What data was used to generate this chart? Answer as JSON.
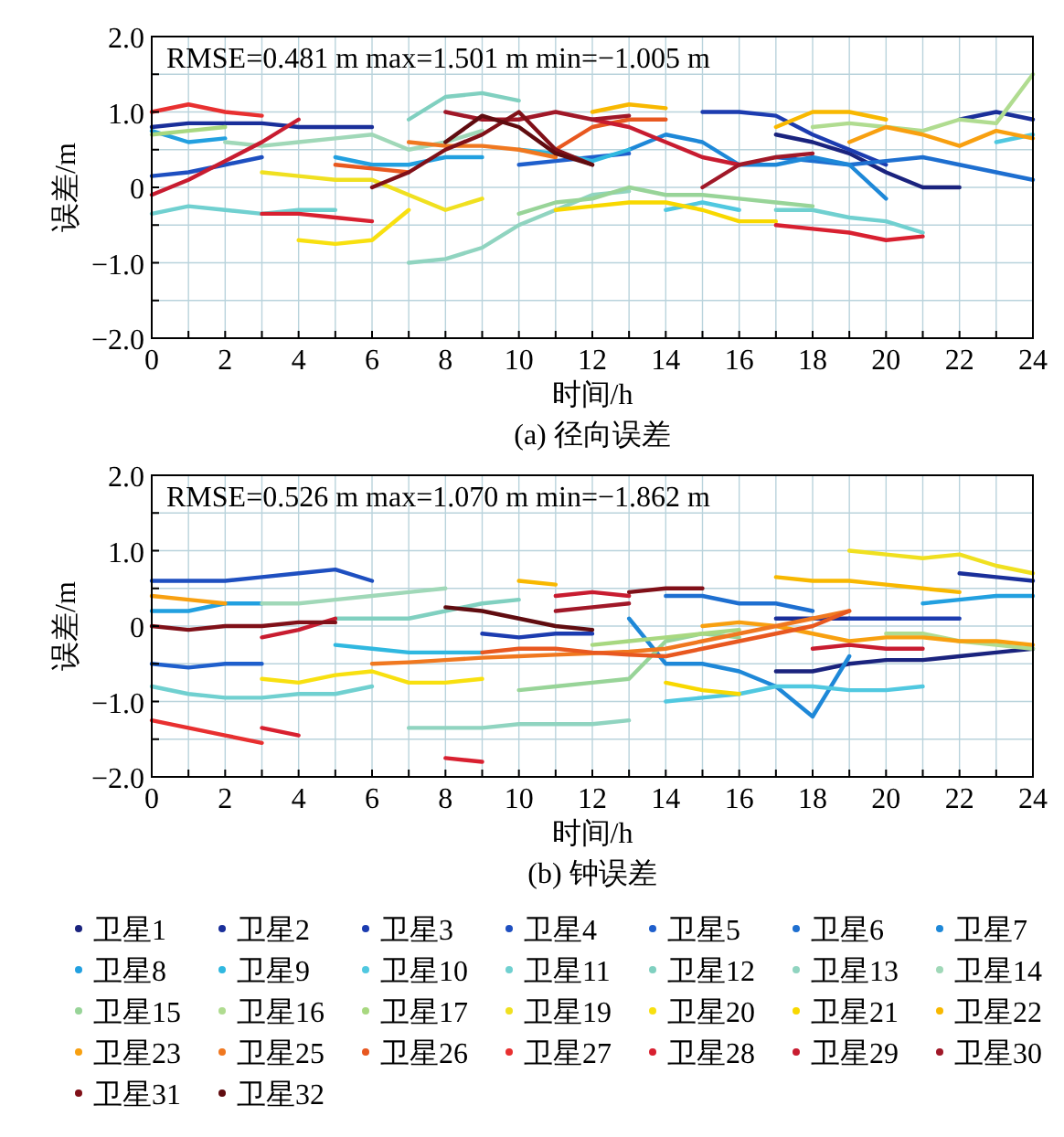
{
  "chart_data": [
    {
      "type": "line",
      "title": "(a) 径向误差",
      "xlabel": "时间/h",
      "ylabel": "误差/m",
      "annotations": [
        "RMSE=0.481 m max=1.501 m min=−1.005 m"
      ],
      "xlim": [
        0,
        24
      ],
      "ylim": [
        -2,
        2
      ],
      "xticks": [
        0,
        {
          "value": 1,
          "label": null
        },
        2,
        {
          "value": 3,
          "label": null
        },
        4,
        {
          "value": 5,
          "label": null
        },
        6,
        {
          "value": 7,
          "label": null
        },
        8,
        {
          "value": 9,
          "label": null
        },
        10,
        {
          "value": 11,
          "label": null
        },
        12,
        {
          "value": 13,
          "label": null
        },
        14,
        {
          "value": 15,
          "label": null
        },
        16,
        {
          "value": 17,
          "label": null
        },
        18,
        {
          "value": 19,
          "label": null
        },
        20,
        {
          "value": 21,
          "label": null
        },
        22,
        {
          "value": 23,
          "label": null
        },
        24
      ],
      "yticks": [
        {
          "value": -2,
          "label": "−2.0"
        },
        {
          "value": -1.5,
          "label": null
        },
        {
          "value": -1,
          "label": "−1.0"
        },
        {
          "value": -0.5,
          "label": null
        },
        0,
        {
          "value": 0.5,
          "label": null
        },
        {
          "value": 1,
          "label": "1.0"
        },
        {
          "value": 1.5,
          "label": null
        },
        {
          "value": 2,
          "label": "2.0"
        }
      ],
      "grid": true,
      "legend": false,
      "series": [
        {
          "color": "#1a237e",
          "x": [
            17,
            18,
            19,
            20,
            21,
            22
          ],
          "values": [
            0.7,
            0.6,
            0.45,
            0.2,
            0.0,
            0.0
          ]
        },
        {
          "color": "#1a2f9a",
          "x": [
            0,
            1,
            2,
            3,
            4,
            5,
            6,
            14,
            22,
            23,
            24
          ],
          "values": [
            0.8,
            0.85,
            0.85,
            0.85,
            0.8,
            0.8,
            0.8,
            null,
            0.9,
            1.0,
            0.9
          ]
        },
        {
          "color": "#1c3cb0",
          "x": [
            15,
            16,
            17,
            18,
            19,
            20
          ],
          "values": [
            1.0,
            1.0,
            0.95,
            0.7,
            0.5,
            0.3
          ]
        },
        {
          "color": "#1e4fc0",
          "x": [
            0,
            1,
            2,
            3
          ],
          "values": [
            0.15,
            0.2,
            0.3,
            0.4
          ]
        },
        {
          "color": "#1f5fcc",
          "x": [
            10,
            11,
            12,
            13
          ],
          "values": [
            0.3,
            0.35,
            0.4,
            0.45
          ]
        },
        {
          "color": "#1e6fd0",
          "x": [
            17,
            18,
            19,
            20,
            21,
            22,
            23,
            24
          ],
          "values": [
            0.4,
            0.35,
            0.3,
            0.35,
            0.4,
            0.3,
            0.2,
            0.1
          ]
        },
        {
          "color": "#1e88d8",
          "x": [
            13,
            14,
            15,
            16,
            17,
            18,
            19,
            20
          ],
          "values": [
            0.5,
            0.7,
            0.6,
            0.3,
            0.3,
            0.4,
            0.3,
            -0.15
          ]
        },
        {
          "color": "#22a0e0",
          "x": [
            0,
            1,
            2,
            3.5,
            5,
            6,
            7,
            8,
            9
          ],
          "values": [
            0.75,
            0.6,
            0.65,
            null,
            0.4,
            0.3,
            0.3,
            0.4,
            0.4
          ]
        },
        {
          "color": "#30b8e0",
          "x": [
            10,
            11,
            12,
            13
          ],
          "values": [
            0.5,
            0.45,
            0.35,
            0.5
          ]
        },
        {
          "color": "#50c8e0",
          "x": [
            14,
            15,
            16,
            19.5,
            23,
            24
          ],
          "values": [
            -0.3,
            -0.2,
            -0.3,
            null,
            0.6,
            0.7
          ]
        },
        {
          "color": "#70d0d0",
          "x": [
            0,
            1,
            2,
            3,
            4,
            5,
            11,
            17,
            18,
            19,
            20,
            21
          ],
          "values": [
            -0.35,
            -0.25,
            -0.3,
            -0.35,
            -0.3,
            -0.3,
            null,
            -0.3,
            -0.3,
            -0.4,
            -0.45,
            -0.6
          ]
        },
        {
          "color": "#80d0c0",
          "x": [
            7,
            8,
            9,
            10
          ],
          "values": [
            0.9,
            1.2,
            1.25,
            1.15
          ]
        },
        {
          "color": "#90d4c0",
          "x": [
            7,
            8,
            9,
            10,
            11,
            12,
            13
          ],
          "values": [
            -1.0,
            -0.95,
            -0.8,
            -0.5,
            -0.3,
            -0.1,
            -0.05
          ]
        },
        {
          "color": "#a0d8b8",
          "x": [
            2,
            3,
            4,
            5,
            6,
            7,
            8,
            9
          ],
          "values": [
            0.6,
            0.55,
            0.6,
            0.65,
            0.7,
            0.5,
            0.6,
            0.75
          ]
        },
        {
          "color": "#98d498",
          "x": [
            10,
            11,
            12,
            13,
            14,
            15,
            16,
            17,
            18
          ],
          "values": [
            -0.35,
            -0.2,
            -0.15,
            0.0,
            -0.1,
            -0.1,
            -0.15,
            -0.2,
            -0.25
          ]
        },
        {
          "color": "#b0dc90",
          "x": [
            18,
            19,
            20,
            21,
            22,
            23,
            24
          ],
          "values": [
            0.8,
            0.85,
            0.8,
            0.75,
            0.9,
            0.85,
            1.5
          ]
        },
        {
          "color": "#a8d880",
          "x": [
            0,
            1,
            2
          ],
          "values": [
            0.7,
            0.75,
            0.8
          ]
        },
        {
          "color": "#f0e020",
          "x": [
            3,
            4,
            5,
            6,
            7,
            8,
            9
          ],
          "values": [
            0.2,
            0.15,
            0.1,
            0.1,
            -0.1,
            -0.3,
            -0.15
          ]
        },
        {
          "color": "#f8e010",
          "x": [
            4,
            5,
            6,
            7
          ],
          "values": [
            -0.7,
            -0.75,
            -0.7,
            -0.3
          ]
        },
        {
          "color": "#f8d800",
          "x": [
            11,
            12,
            13,
            14,
            15,
            16,
            17
          ],
          "values": [
            -0.3,
            -0.25,
            -0.2,
            -0.2,
            -0.3,
            -0.45,
            -0.45
          ]
        },
        {
          "color": "#f8b800",
          "x": [
            12,
            13,
            14,
            15.5,
            17,
            18,
            19,
            20
          ],
          "values": [
            1.0,
            1.1,
            1.05,
            null,
            0.8,
            1.0,
            1.0,
            0.9
          ]
        },
        {
          "color": "#f8a010",
          "x": [
            19,
            20,
            21,
            22,
            23,
            24
          ],
          "values": [
            0.6,
            0.8,
            0.7,
            0.55,
            0.75,
            0.65
          ]
        },
        {
          "color": "#f07820",
          "x": [
            7,
            8,
            9,
            10,
            11
          ],
          "values": [
            0.6,
            0.55,
            0.55,
            0.5,
            0.4
          ]
        },
        {
          "color": "#e85820",
          "x": [
            5,
            6,
            7,
            9,
            11,
            12,
            13,
            14
          ],
          "values": [
            0.3,
            0.25,
            0.2,
            null,
            0.5,
            0.8,
            0.9,
            0.9
          ]
        },
        {
          "color": "#e83030",
          "x": [
            0,
            1,
            2,
            3
          ],
          "values": [
            1.0,
            1.1,
            1.0,
            0.95
          ]
        },
        {
          "color": "#d82030",
          "x": [
            3,
            4,
            5,
            6,
            11,
            17,
            18,
            19,
            20,
            21
          ],
          "values": [
            -0.35,
            -0.35,
            -0.4,
            -0.45,
            null,
            -0.5,
            -0.55,
            -0.6,
            -0.7,
            -0.65
          ]
        },
        {
          "color": "#c81c30",
          "x": [
            0,
            1,
            2,
            3,
            4,
            8,
            12,
            13,
            14,
            15,
            16
          ],
          "values": [
            -0.1,
            0.1,
            0.35,
            0.6,
            0.9,
            null,
            0.9,
            0.8,
            0.6,
            0.4,
            0.3
          ]
        },
        {
          "color": "#a01828",
          "x": [
            8,
            9,
            10,
            11,
            12,
            13,
            14,
            15,
            16,
            17,
            18
          ],
          "values": [
            1.0,
            0.9,
            0.9,
            1.0,
            0.9,
            0.95,
            null,
            0.0,
            0.3,
            0.4,
            0.45
          ]
        },
        {
          "color": "#801018",
          "x": [
            6,
            7,
            8,
            9,
            10,
            11,
            12
          ],
          "values": [
            0.0,
            0.2,
            0.5,
            0.7,
            1.0,
            0.5,
            0.3
          ]
        },
        {
          "color": "#600c10",
          "x": [
            8,
            9,
            10,
            11,
            12
          ],
          "values": [
            0.6,
            0.95,
            0.8,
            0.45,
            0.3
          ]
        }
      ]
    },
    {
      "type": "line",
      "title": "(b) 钟误差",
      "xlabel": "时间/h",
      "ylabel": "误差/m",
      "annotations": [
        "RMSE=0.526 m max=1.070 m min=−1.862 m"
      ],
      "xlim": [
        0,
        24
      ],
      "ylim": [
        -2,
        2
      ],
      "xticks": [
        0,
        {
          "value": 1,
          "label": null
        },
        2,
        {
          "value": 3,
          "label": null
        },
        4,
        {
          "value": 5,
          "label": null
        },
        6,
        {
          "value": 7,
          "label": null
        },
        8,
        {
          "value": 9,
          "label": null
        },
        10,
        {
          "value": 11,
          "label": null
        },
        12,
        {
          "value": 13,
          "label": null
        },
        14,
        {
          "value": 15,
          "label": null
        },
        16,
        {
          "value": 17,
          "label": null
        },
        18,
        {
          "value": 19,
          "label": null
        },
        20,
        {
          "value": 21,
          "label": null
        },
        22,
        {
          "value": 23,
          "label": null
        },
        24
      ],
      "yticks": [
        {
          "value": -2,
          "label": "−2.0"
        },
        {
          "value": -1.5,
          "label": null
        },
        {
          "value": -1,
          "label": "−1.0"
        },
        {
          "value": -0.5,
          "label": null
        },
        0,
        {
          "value": 0.5,
          "label": null
        },
        {
          "value": 1,
          "label": "1.0"
        },
        {
          "value": 1.5,
          "label": null
        },
        {
          "value": 2,
          "label": "2.0"
        }
      ],
      "grid": true,
      "legend": "bottom",
      "series": [
        {
          "name": "卫星1",
          "color": "#1a237e",
          "x": [
            17,
            18,
            19,
            20,
            21,
            22,
            23,
            24
          ],
          "values": [
            -0.6,
            -0.6,
            -0.5,
            -0.45,
            -0.45,
            -0.4,
            -0.35,
            -0.3
          ]
        },
        {
          "name": "卫星2",
          "color": "#1a2f9a",
          "x": [
            17,
            18,
            19,
            20.5,
            22,
            23,
            24
          ],
          "values": [
            0.1,
            0.1,
            0.1,
            null,
            0.7,
            0.65,
            0.6
          ]
        },
        {
          "name": "卫星3",
          "color": "#1c3cb0",
          "x": [
            9,
            10,
            11,
            12,
            15,
            19,
            20,
            21,
            22
          ],
          "values": [
            -0.1,
            -0.15,
            -0.1,
            -0.1,
            null,
            0.1,
            0.1,
            0.1,
            0.1
          ]
        },
        {
          "name": "卫星4",
          "color": "#1e4fc0",
          "x": [
            0,
            1,
            2,
            3,
            4,
            5,
            6
          ],
          "values": [
            0.6,
            0.6,
            0.6,
            0.65,
            0.7,
            0.75,
            0.6
          ]
        },
        {
          "name": "卫星5",
          "color": "#1f5fcc",
          "x": [
            0,
            1,
            2,
            3
          ],
          "values": [
            -0.5,
            -0.55,
            -0.5,
            -0.5
          ]
        },
        {
          "name": "卫星6",
          "color": "#1e6fd0",
          "x": [
            14,
            15,
            16,
            17,
            18
          ],
          "values": [
            0.4,
            0.4,
            0.3,
            0.3,
            0.2
          ]
        },
        {
          "name": "卫星7",
          "color": "#1e88d8",
          "x": [
            13,
            14,
            15,
            16,
            17,
            18,
            19
          ],
          "values": [
            0.1,
            -0.5,
            -0.5,
            -0.6,
            -0.8,
            -1.2,
            -0.4
          ]
        },
        {
          "name": "卫星8",
          "color": "#22a0e0",
          "x": [
            0,
            1,
            2,
            3,
            12,
            21,
            22,
            23,
            24
          ],
          "values": [
            0.2,
            0.2,
            0.3,
            0.3,
            null,
            0.3,
            0.35,
            0.4,
            0.4
          ]
        },
        {
          "name": "卫星9",
          "color": "#30b8e0",
          "x": [
            5,
            6,
            7,
            8,
            9
          ],
          "values": [
            -0.25,
            -0.3,
            -0.35,
            -0.35,
            -0.35
          ]
        },
        {
          "name": "卫星10",
          "color": "#50c8e0",
          "x": [
            14,
            15,
            16,
            17,
            18,
            19,
            20,
            21
          ],
          "values": [
            -1.0,
            -0.95,
            -0.9,
            -0.8,
            -0.8,
            -0.85,
            -0.85,
            -0.8
          ]
        },
        {
          "name": "卫星11",
          "color": "#70d0d0",
          "x": [
            0,
            1,
            2,
            3,
            4,
            5,
            6
          ],
          "values": [
            -0.8,
            -0.9,
            -0.95,
            -0.95,
            -0.9,
            -0.9,
            -0.8
          ]
        },
        {
          "name": "卫星12",
          "color": "#80d0c0",
          "x": [
            5,
            6,
            7,
            8,
            9,
            10
          ],
          "values": [
            0.1,
            0.1,
            0.1,
            0.2,
            0.3,
            0.35
          ]
        },
        {
          "name": "卫星13",
          "color": "#90d4c0",
          "x": [
            7,
            8,
            9,
            10,
            11,
            12,
            13
          ],
          "values": [
            -1.35,
            -1.35,
            -1.35,
            -1.3,
            -1.3,
            -1.3,
            -1.25
          ]
        },
        {
          "name": "卫星14",
          "color": "#a0d8b8",
          "x": [
            3,
            4,
            5,
            6,
            7,
            8
          ],
          "values": [
            0.3,
            0.3,
            0.35,
            0.4,
            0.45,
            0.5
          ]
        },
        {
          "name": "卫星15",
          "color": "#98d498",
          "x": [
            10,
            11,
            12,
            13,
            14,
            15,
            16
          ],
          "values": [
            -0.85,
            -0.8,
            -0.75,
            -0.7,
            -0.2,
            -0.1,
            -0.15
          ]
        },
        {
          "name": "卫星16",
          "color": "#b0dc90",
          "x": [
            20,
            21,
            22,
            23,
            24
          ],
          "values": [
            -0.1,
            -0.1,
            -0.2,
            -0.25,
            -0.3
          ]
        },
        {
          "name": "卫星17",
          "color": "#a8d880",
          "x": [
            12,
            13,
            14,
            15,
            16
          ],
          "values": [
            -0.25,
            -0.2,
            -0.15,
            -0.1,
            -0.05
          ]
        },
        {
          "name": "卫星19",
          "color": "#f0e020",
          "x": [
            19,
            20,
            21,
            22,
            23,
            24
          ],
          "values": [
            1.0,
            0.95,
            0.9,
            0.95,
            0.8,
            0.7
          ]
        },
        {
          "name": "卫星20",
          "color": "#f8e010",
          "x": [
            3,
            4,
            5,
            6,
            7,
            8,
            9
          ],
          "values": [
            -0.7,
            -0.75,
            -0.65,
            -0.6,
            -0.75,
            -0.75,
            -0.7
          ]
        },
        {
          "name": "卫星21",
          "color": "#f8d800",
          "x": [
            14,
            15,
            16
          ],
          "values": [
            -0.75,
            -0.85,
            -0.9
          ]
        },
        {
          "name": "卫星22",
          "color": "#f8b800",
          "x": [
            10,
            11,
            14,
            17,
            18,
            19,
            20,
            21,
            22
          ],
          "values": [
            0.6,
            0.55,
            null,
            0.65,
            0.6,
            0.6,
            0.55,
            0.5,
            0.45
          ]
        },
        {
          "name": "卫星23",
          "color": "#f8a010",
          "x": [
            0,
            1,
            2,
            8,
            15,
            16,
            17,
            18,
            19,
            20,
            21,
            22,
            23,
            24
          ],
          "values": [
            0.4,
            0.35,
            0.3,
            null,
            0.0,
            0.05,
            0.0,
            -0.1,
            -0.2,
            -0.15,
            -0.15,
            -0.2,
            -0.2,
            -0.25
          ]
        },
        {
          "name": "卫星25",
          "color": "#f07820",
          "x": [
            6,
            7,
            8,
            9,
            10,
            11,
            12,
            13,
            14,
            15,
            16,
            17,
            18,
            19
          ],
          "values": [
            -0.5,
            -0.48,
            -0.45,
            -0.42,
            -0.4,
            -0.38,
            -0.36,
            -0.34,
            -0.3,
            -0.2,
            -0.1,
            0.0,
            0.1,
            0.2
          ]
        },
        {
          "name": "卫星26",
          "color": "#e85820",
          "x": [
            9,
            10,
            11,
            12,
            13,
            14,
            15,
            16,
            17,
            18,
            19
          ],
          "values": [
            -0.35,
            -0.3,
            -0.3,
            -0.35,
            -0.38,
            -0.4,
            -0.3,
            -0.2,
            -0.1,
            0.0,
            0.2
          ]
        },
        {
          "name": "卫星27",
          "color": "#e83030",
          "x": [
            0,
            1,
            2,
            3
          ],
          "values": [
            -1.25,
            -1.35,
            -1.45,
            -1.55
          ]
        },
        {
          "name": "卫星28",
          "color": "#d82030",
          "x": [
            3,
            4,
            6,
            8,
            9
          ],
          "values": [
            -1.35,
            -1.45,
            null,
            -1.75,
            -1.8
          ]
        },
        {
          "name": "卫星29",
          "color": "#c81c30",
          "x": [
            3,
            4,
            5,
            8,
            11,
            12,
            13,
            15.5,
            18,
            19,
            20,
            21
          ],
          "values": [
            -0.15,
            -0.05,
            0.1,
            null,
            0.4,
            0.45,
            0.4,
            null,
            -0.3,
            -0.25,
            -0.3,
            -0.3
          ]
        },
        {
          "name": "卫星30",
          "color": "#a01828",
          "x": [
            11,
            12,
            13
          ],
          "values": [
            0.2,
            0.25,
            0.3
          ]
        },
        {
          "name": "卫星31",
          "color": "#801018",
          "x": [
            0,
            1,
            2,
            3,
            4,
            5,
            9,
            13,
            14,
            15
          ],
          "values": [
            0.0,
            -0.05,
            0.0,
            0.0,
            0.05,
            0.05,
            null,
            0.45,
            0.5,
            0.5
          ]
        },
        {
          "name": "卫星32",
          "color": "#600c10",
          "x": [
            8,
            9,
            10,
            11,
            12
          ],
          "values": [
            0.25,
            0.2,
            0.1,
            0.0,
            -0.05
          ]
        }
      ]
    }
  ]
}
